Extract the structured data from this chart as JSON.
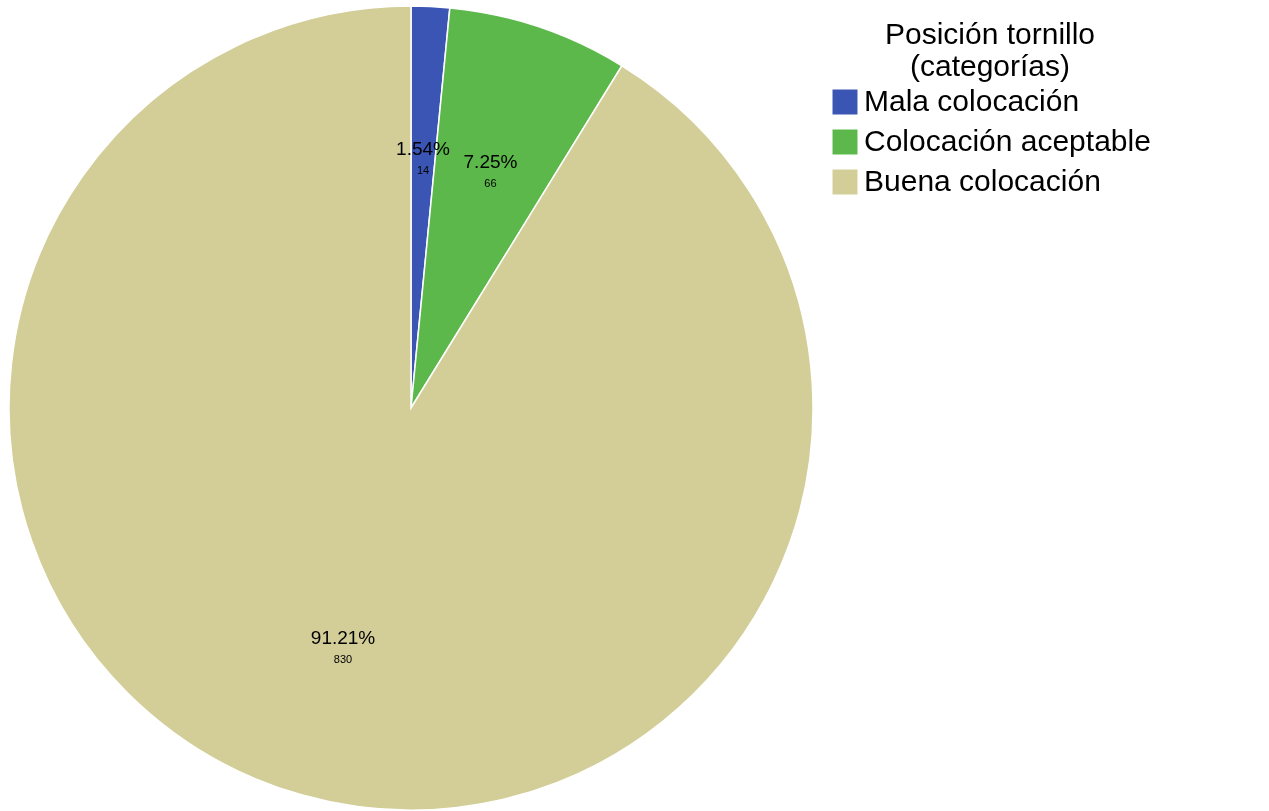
{
  "chart_data": {
    "type": "pie",
    "legend_title": "Posición tornillo\n(categorías)",
    "categories": [
      "Mala colocación",
      "Colocación aceptable",
      "Buena colocación"
    ],
    "values": [
      1.54,
      7.25,
      91.21
    ],
    "value_labels": [
      "1.54%",
      "7.25%",
      "91.21%"
    ],
    "annotations": [
      "14",
      "66",
      "830"
    ],
    "colors": [
      "#3a55b4",
      "#5cb84a",
      "#d3ce98"
    ],
    "legend": "right"
  }
}
